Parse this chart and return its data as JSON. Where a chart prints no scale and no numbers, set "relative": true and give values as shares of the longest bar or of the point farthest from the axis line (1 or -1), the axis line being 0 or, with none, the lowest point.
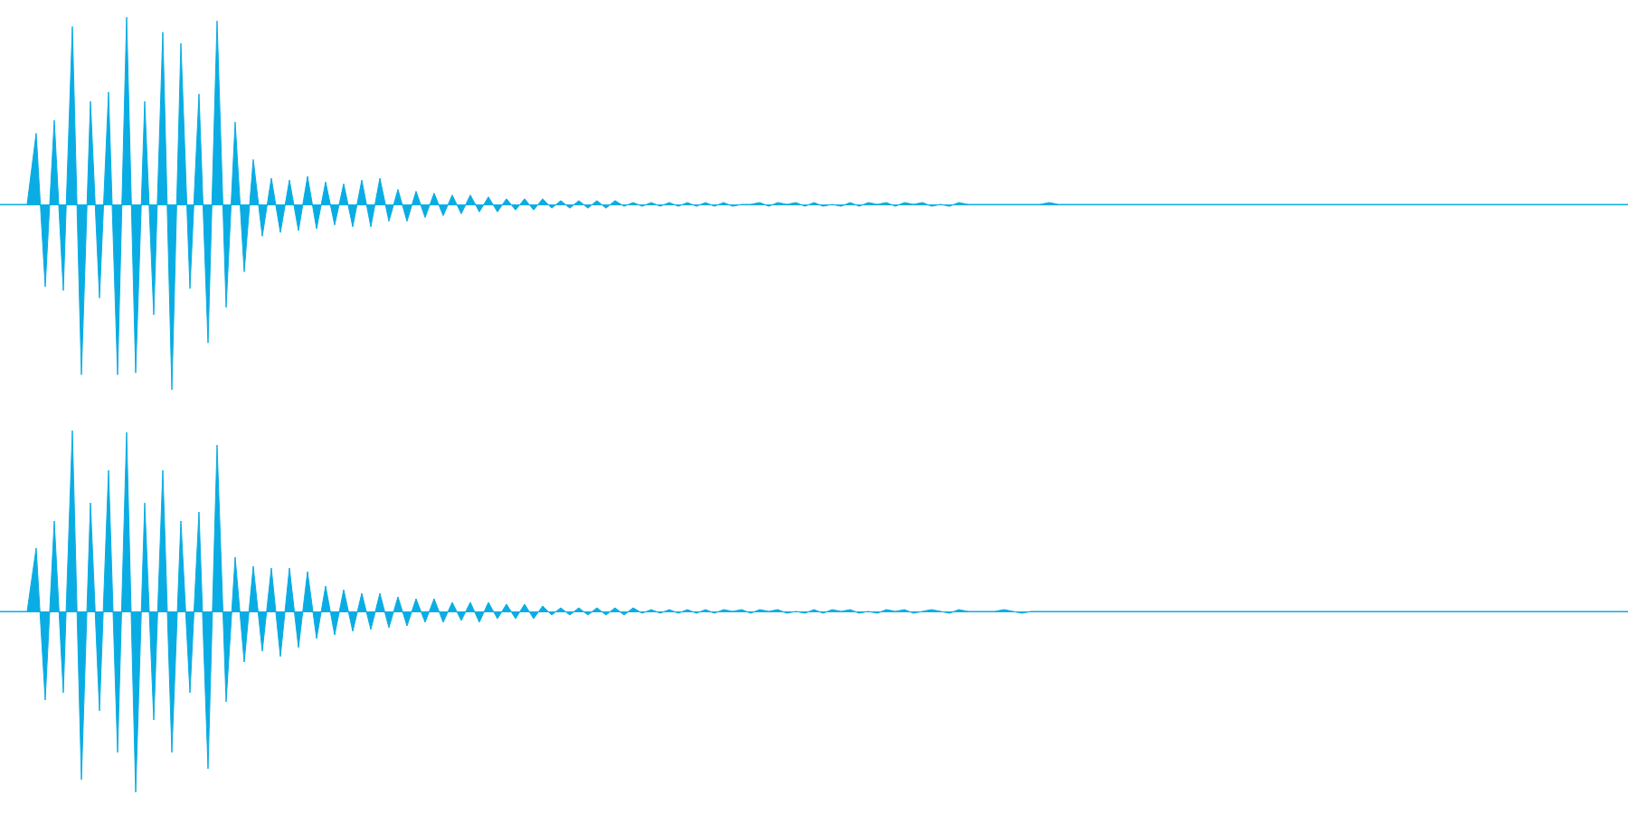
{
  "chart_data": [
    {
      "type": "area",
      "relative": true,
      "marker": "none",
      "tick_labels": false,
      "color": "#09ade3",
      "categories": [
        null,
        null,
        null,
        null,
        null,
        null,
        null,
        null,
        null,
        null,
        null,
        null,
        null,
        null,
        null,
        null,
        null,
        null,
        null,
        null,
        null,
        null,
        null,
        null,
        null,
        null,
        null,
        null,
        null,
        null,
        null,
        null,
        null,
        null,
        null,
        null,
        null,
        null,
        null,
        null,
        null,
        null,
        null,
        null,
        null,
        null,
        null,
        null,
        null,
        null,
        null,
        null,
        null,
        null,
        null,
        null,
        null,
        null,
        null,
        null,
        null,
        null,
        null,
        null,
        null,
        null,
        null,
        null,
        null,
        null,
        null,
        null,
        null,
        null,
        null,
        null,
        null,
        null,
        null,
        null,
        null,
        null,
        null,
        null,
        null,
        null,
        null,
        null,
        null,
        null,
        null,
        null,
        null,
        null,
        null,
        null,
        null,
        null,
        null,
        null,
        null,
        null,
        null,
        null,
        null,
        null,
        null,
        null,
        null,
        null,
        null,
        null,
        null,
        null,
        null,
        null,
        null,
        null,
        null,
        null,
        null,
        null,
        null,
        null,
        null,
        null,
        null,
        null,
        null,
        null,
        null,
        null,
        null,
        null,
        null,
        null,
        null,
        null,
        null,
        null,
        null,
        null,
        null,
        null,
        null,
        null,
        null,
        null,
        null,
        null,
        null,
        null,
        null,
        null,
        null,
        null,
        null,
        null,
        null,
        null,
        null,
        null,
        null,
        null,
        null,
        null,
        null,
        null,
        null,
        null,
        null,
        null,
        null,
        null,
        null,
        null,
        null,
        null,
        null,
        null,
        null
      ],
      "values": [
        0,
        0,
        0,
        0,
        0.38,
        -0.44,
        0.45,
        -0.46,
        0.95,
        -0.91,
        0.55,
        -0.5,
        0.6,
        -0.91,
        1.0,
        -0.9,
        0.55,
        -0.59,
        0.92,
        -0.99,
        0.86,
        -0.45,
        0.59,
        -0.74,
        0.98,
        -0.55,
        0.44,
        -0.36,
        0.24,
        -0.17,
        0.14,
        -0.15,
        0.13,
        -0.14,
        0.15,
        -0.13,
        0.12,
        -0.11,
        0.11,
        -0.12,
        0.13,
        -0.12,
        0.14,
        -0.09,
        0.08,
        -0.09,
        0.07,
        -0.07,
        0.06,
        -0.06,
        0.05,
        -0.05,
        0.05,
        -0.04,
        0.04,
        -0.04,
        0.03,
        -0.03,
        0.03,
        -0.03,
        0.03,
        -0.02,
        0.02,
        -0.02,
        0.02,
        -0.02,
        0.02,
        -0.02,
        0.02,
        -0.01,
        0.01,
        -0.01,
        0.01,
        -0.01,
        0.01,
        -0.01,
        0.01,
        -0.01,
        0.01,
        -0.01,
        0.01,
        -0.01,
        0,
        0,
        0.01,
        -0.01,
        0.01,
        0,
        0.01,
        -0.01,
        0.01,
        -0.01,
        0,
        -0.01,
        0.01,
        -0.01,
        0.01,
        0,
        0.01,
        -0.01,
        0.01,
        0,
        0.01,
        -0.01,
        0,
        -0.01,
        0.01,
        0,
        0,
        0,
        0,
        0,
        0,
        0,
        0,
        0,
        0.01,
        0,
        0,
        0,
        0,
        0,
        0,
        0,
        0,
        0,
        0,
        0,
        0,
        0,
        0,
        0,
        0,
        0,
        0,
        0,
        0,
        0,
        0,
        0,
        0,
        0,
        0,
        0,
        0,
        0,
        0,
        0,
        0,
        0,
        0,
        0,
        0,
        0,
        0,
        0,
        0,
        0,
        0,
        0,
        0,
        0,
        0,
        0,
        0,
        0,
        0,
        0,
        0,
        0,
        0,
        0,
        0,
        0,
        0,
        0,
        0,
        0,
        0,
        0,
        0
      ]
    },
    {
      "type": "area",
      "relative": true,
      "marker": "none",
      "tick_labels": false,
      "color": "#09ade3",
      "categories": [
        null,
        null,
        null,
        null,
        null,
        null,
        null,
        null,
        null,
        null,
        null,
        null,
        null,
        null,
        null,
        null,
        null,
        null,
        null,
        null,
        null,
        null,
        null,
        null,
        null,
        null,
        null,
        null,
        null,
        null,
        null,
        null,
        null,
        null,
        null,
        null,
        null,
        null,
        null,
        null,
        null,
        null,
        null,
        null,
        null,
        null,
        null,
        null,
        null,
        null,
        null,
        null,
        null,
        null,
        null,
        null,
        null,
        null,
        null,
        null,
        null,
        null,
        null,
        null,
        null,
        null,
        null,
        null,
        null,
        null,
        null,
        null,
        null,
        null,
        null,
        null,
        null,
        null,
        null,
        null,
        null,
        null,
        null,
        null,
        null,
        null,
        null,
        null,
        null,
        null,
        null,
        null,
        null,
        null,
        null,
        null,
        null,
        null,
        null,
        null,
        null,
        null,
        null,
        null,
        null,
        null,
        null,
        null,
        null,
        null,
        null,
        null,
        null,
        null,
        null,
        null,
        null,
        null,
        null,
        null,
        null,
        null,
        null,
        null,
        null,
        null,
        null,
        null,
        null,
        null,
        null,
        null,
        null,
        null,
        null,
        null,
        null,
        null,
        null,
        null,
        null,
        null,
        null,
        null,
        null,
        null,
        null,
        null,
        null,
        null,
        null,
        null,
        null,
        null,
        null,
        null,
        null,
        null,
        null,
        null,
        null,
        null,
        null,
        null,
        null,
        null,
        null,
        null,
        null,
        null,
        null,
        null,
        null,
        null,
        null,
        null,
        null,
        null,
        null,
        null,
        null
      ],
      "values": [
        0,
        0,
        0,
        0,
        0.35,
        -0.49,
        0.5,
        -0.45,
        1.0,
        -0.93,
        0.6,
        -0.55,
        0.78,
        -0.78,
        0.99,
        -1.0,
        0.6,
        -0.6,
        0.78,
        -0.78,
        0.5,
        -0.45,
        0.55,
        -0.87,
        0.92,
        -0.5,
        0.3,
        -0.28,
        0.25,
        -0.22,
        0.24,
        -0.25,
        0.24,
        -0.2,
        0.22,
        -0.15,
        0.14,
        -0.13,
        0.12,
        -0.11,
        0.1,
        -0.1,
        0.1,
        -0.09,
        0.08,
        -0.08,
        0.07,
        -0.06,
        0.07,
        -0.06,
        0.05,
        -0.05,
        0.05,
        -0.06,
        0.05,
        -0.04,
        0.04,
        -0.04,
        0.04,
        -0.04,
        0.03,
        -0.02,
        0.02,
        -0.02,
        0.02,
        -0.02,
        0.02,
        -0.02,
        0.02,
        -0.02,
        0.02,
        -0.01,
        0.01,
        -0.01,
        0.01,
        -0.01,
        0.01,
        -0.01,
        0.01,
        -0.01,
        0.01,
        0,
        0.01,
        -0.01,
        0.01,
        0,
        0.01,
        -0.01,
        0,
        -0.01,
        0.01,
        -0.01,
        0.01,
        0,
        0.01,
        -0.01,
        0,
        -0.01,
        0.01,
        0,
        0.01,
        -0.01,
        0,
        0.01,
        0,
        -0.01,
        0.01,
        0,
        0,
        0,
        0,
        0.01,
        0,
        -0.01,
        0,
        0,
        0,
        0,
        0,
        0,
        0,
        0,
        0,
        0,
        0,
        0,
        0,
        0,
        0,
        0,
        0,
        0,
        0,
        0,
        0,
        0,
        0,
        0,
        0,
        0,
        0,
        0,
        0,
        0,
        0,
        0,
        0,
        0,
        0,
        0,
        0,
        0,
        0,
        0,
        0,
        0,
        0,
        0,
        0,
        0,
        0,
        0,
        0,
        0,
        0,
        0,
        0,
        0,
        0,
        0,
        0,
        0,
        0,
        0,
        0,
        0,
        0,
        0,
        0,
        0,
        0
      ]
    }
  ]
}
